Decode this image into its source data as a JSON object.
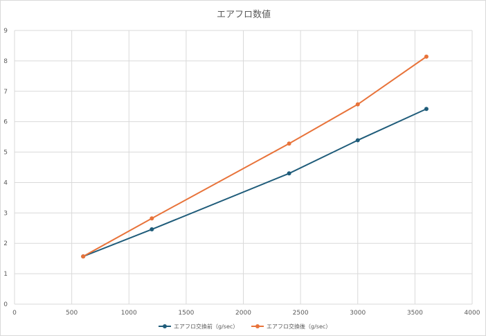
{
  "chart_data": {
    "type": "line",
    "title": "エアフロ数値",
    "xlim": [
      0,
      4000
    ],
    "ylim": [
      0,
      9
    ],
    "xticks": [
      0,
      500,
      1000,
      1500,
      2000,
      2500,
      3000,
      3500,
      4000
    ],
    "yticks": [
      0,
      1,
      2,
      3,
      4,
      5,
      6,
      7,
      8,
      9
    ],
    "grid": true,
    "legend_position": "bottom",
    "series": [
      {
        "name": "エアフロ交換前（g/sec）",
        "color": "#1f5c7a",
        "points": [
          [
            600,
            1.57
          ],
          [
            1200,
            2.46
          ],
          [
            2400,
            4.3
          ],
          [
            3000,
            5.39
          ],
          [
            3600,
            6.42
          ]
        ]
      },
      {
        "name": "エアフロ交換後（g/sec）",
        "color": "#e8733a",
        "points": [
          [
            600,
            1.57
          ],
          [
            1200,
            2.82
          ],
          [
            2400,
            5.28
          ],
          [
            3000,
            6.57
          ],
          [
            3600,
            8.14
          ]
        ]
      }
    ]
  }
}
